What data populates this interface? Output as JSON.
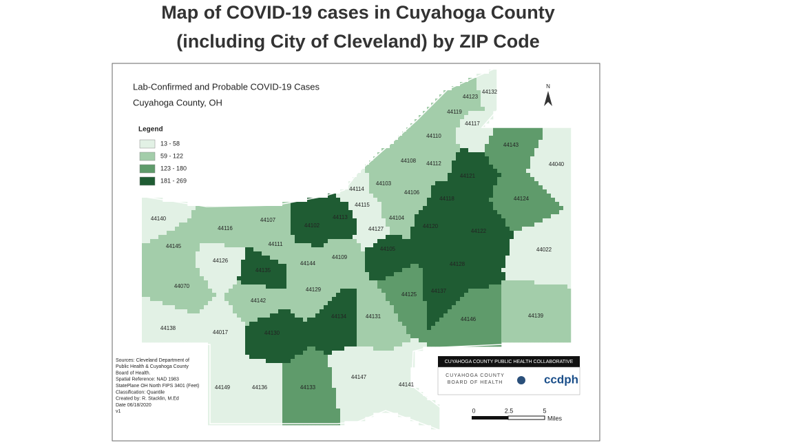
{
  "header": {
    "title": [
      "Map of COVID-19 cases in Cuyahoga County",
      "(including City of Cleveland) by ZIP Code"
    ]
  },
  "map": {
    "title": [
      "Lab-Confirmed and Probable COVID-19 Cases",
      "Cuyahoga County, OH"
    ],
    "legend": {
      "title": "Legend",
      "classes": [
        {
          "label": "13 - 58",
          "color": "#e2f1e5"
        },
        {
          "label": "59 - 122",
          "color": "#a3cdaa"
        },
        {
          "label": "123 - 180",
          "color": "#5f9b6b"
        },
        {
          "label": "181 - 269",
          "color": "#1f5c33"
        }
      ]
    },
    "zips": [
      {
        "label": "44132",
        "color": "#e2f1e5"
      },
      {
        "label": "44123",
        "color": "#a3cdaa"
      },
      {
        "label": "44119",
        "color": "#a3cdaa"
      },
      {
        "label": "44117",
        "color": "#e2f1e5"
      },
      {
        "label": "44143",
        "color": "#5f9b6b"
      },
      {
        "label": "44040",
        "color": "#e2f1e5"
      },
      {
        "label": "44110",
        "color": "#a3cdaa"
      },
      {
        "label": "44108",
        "color": "#a3cdaa"
      },
      {
        "label": "44112",
        "color": "#a3cdaa"
      },
      {
        "label": "44121",
        "color": "#1f5c33"
      },
      {
        "label": "44114",
        "color": "#e2f1e5"
      },
      {
        "label": "44103",
        "color": "#a3cdaa"
      },
      {
        "label": "44106",
        "color": "#a3cdaa"
      },
      {
        "label": "44118",
        "color": "#1f5c33"
      },
      {
        "label": "44124",
        "color": "#5f9b6b"
      },
      {
        "label": "44115",
        "color": "#e2f1e5"
      },
      {
        "label": "44140",
        "color": "#e2f1e5"
      },
      {
        "label": "44116",
        "color": "#a3cdaa"
      },
      {
        "label": "44107",
        "color": "#a3cdaa"
      },
      {
        "label": "44102",
        "color": "#1f5c33"
      },
      {
        "label": "44113",
        "color": "#1f5c33"
      },
      {
        "label": "44104",
        "color": "#a3cdaa"
      },
      {
        "label": "44127",
        "color": "#e2f1e5"
      },
      {
        "label": "44120",
        "color": "#1f5c33"
      },
      {
        "label": "44122",
        "color": "#1f5c33"
      },
      {
        "label": "44111",
        "color": "#a3cdaa"
      },
      {
        "label": "44105",
        "color": "#1f5c33"
      },
      {
        "label": "44022",
        "color": "#e2f1e5"
      },
      {
        "label": "44145",
        "color": "#a3cdaa"
      },
      {
        "label": "44126",
        "color": "#e2f1e5"
      },
      {
        "label": "44135",
        "color": "#1f5c33"
      },
      {
        "label": "44144",
        "color": "#a3cdaa"
      },
      {
        "label": "44109",
        "color": "#a3cdaa"
      },
      {
        "label": "44128",
        "color": "#1f5c33"
      },
      {
        "label": "44070",
        "color": "#a3cdaa"
      },
      {
        "label": "44129",
        "color": "#a3cdaa"
      },
      {
        "label": "44142",
        "color": "#a3cdaa"
      },
      {
        "label": "44125",
        "color": "#5f9b6b"
      },
      {
        "label": "44137",
        "color": "#1f5c33"
      },
      {
        "label": "44134",
        "color": "#1f5c33"
      },
      {
        "label": "44131",
        "color": "#a3cdaa"
      },
      {
        "label": "44146",
        "color": "#5f9b6b"
      },
      {
        "label": "44139",
        "color": "#a3cdaa"
      },
      {
        "label": "44138",
        "color": "#e2f1e5"
      },
      {
        "label": "44017",
        "color": "#e2f1e5"
      },
      {
        "label": "44130",
        "color": "#1f5c33"
      },
      {
        "label": "44149",
        "color": "#e2f1e5"
      },
      {
        "label": "44136",
        "color": "#e2f1e5"
      },
      {
        "label": "44133",
        "color": "#5f9b6b"
      },
      {
        "label": "44147",
        "color": "#e2f1e5"
      },
      {
        "label": "44141",
        "color": "#e2f1e5"
      }
    ],
    "sources": [
      "Sources: Cleveland Department of",
      "Public Health & Cuyahoga County",
      "Board of Health.",
      "Spatial Reference: NAD 1983",
      "StatePlane OH North FIPS 3401 (Feet)",
      "Classification: Quantile",
      "Created by: R. Stacklin, M.Ed",
      "Date 06/18/2020",
      "v1"
    ],
    "north": "N",
    "scale": {
      "ticks": [
        "0",
        "2.5",
        "5"
      ],
      "unit": "Miles"
    },
    "logo": {
      "banner": "CUYAHOGA COUNTY PUBLIC HEALTH COLLABORATIVE",
      "board": [
        "CUYAHOGA COUNTY",
        "BOARD OF HEALTH"
      ],
      "brand": "ccdph"
    }
  }
}
